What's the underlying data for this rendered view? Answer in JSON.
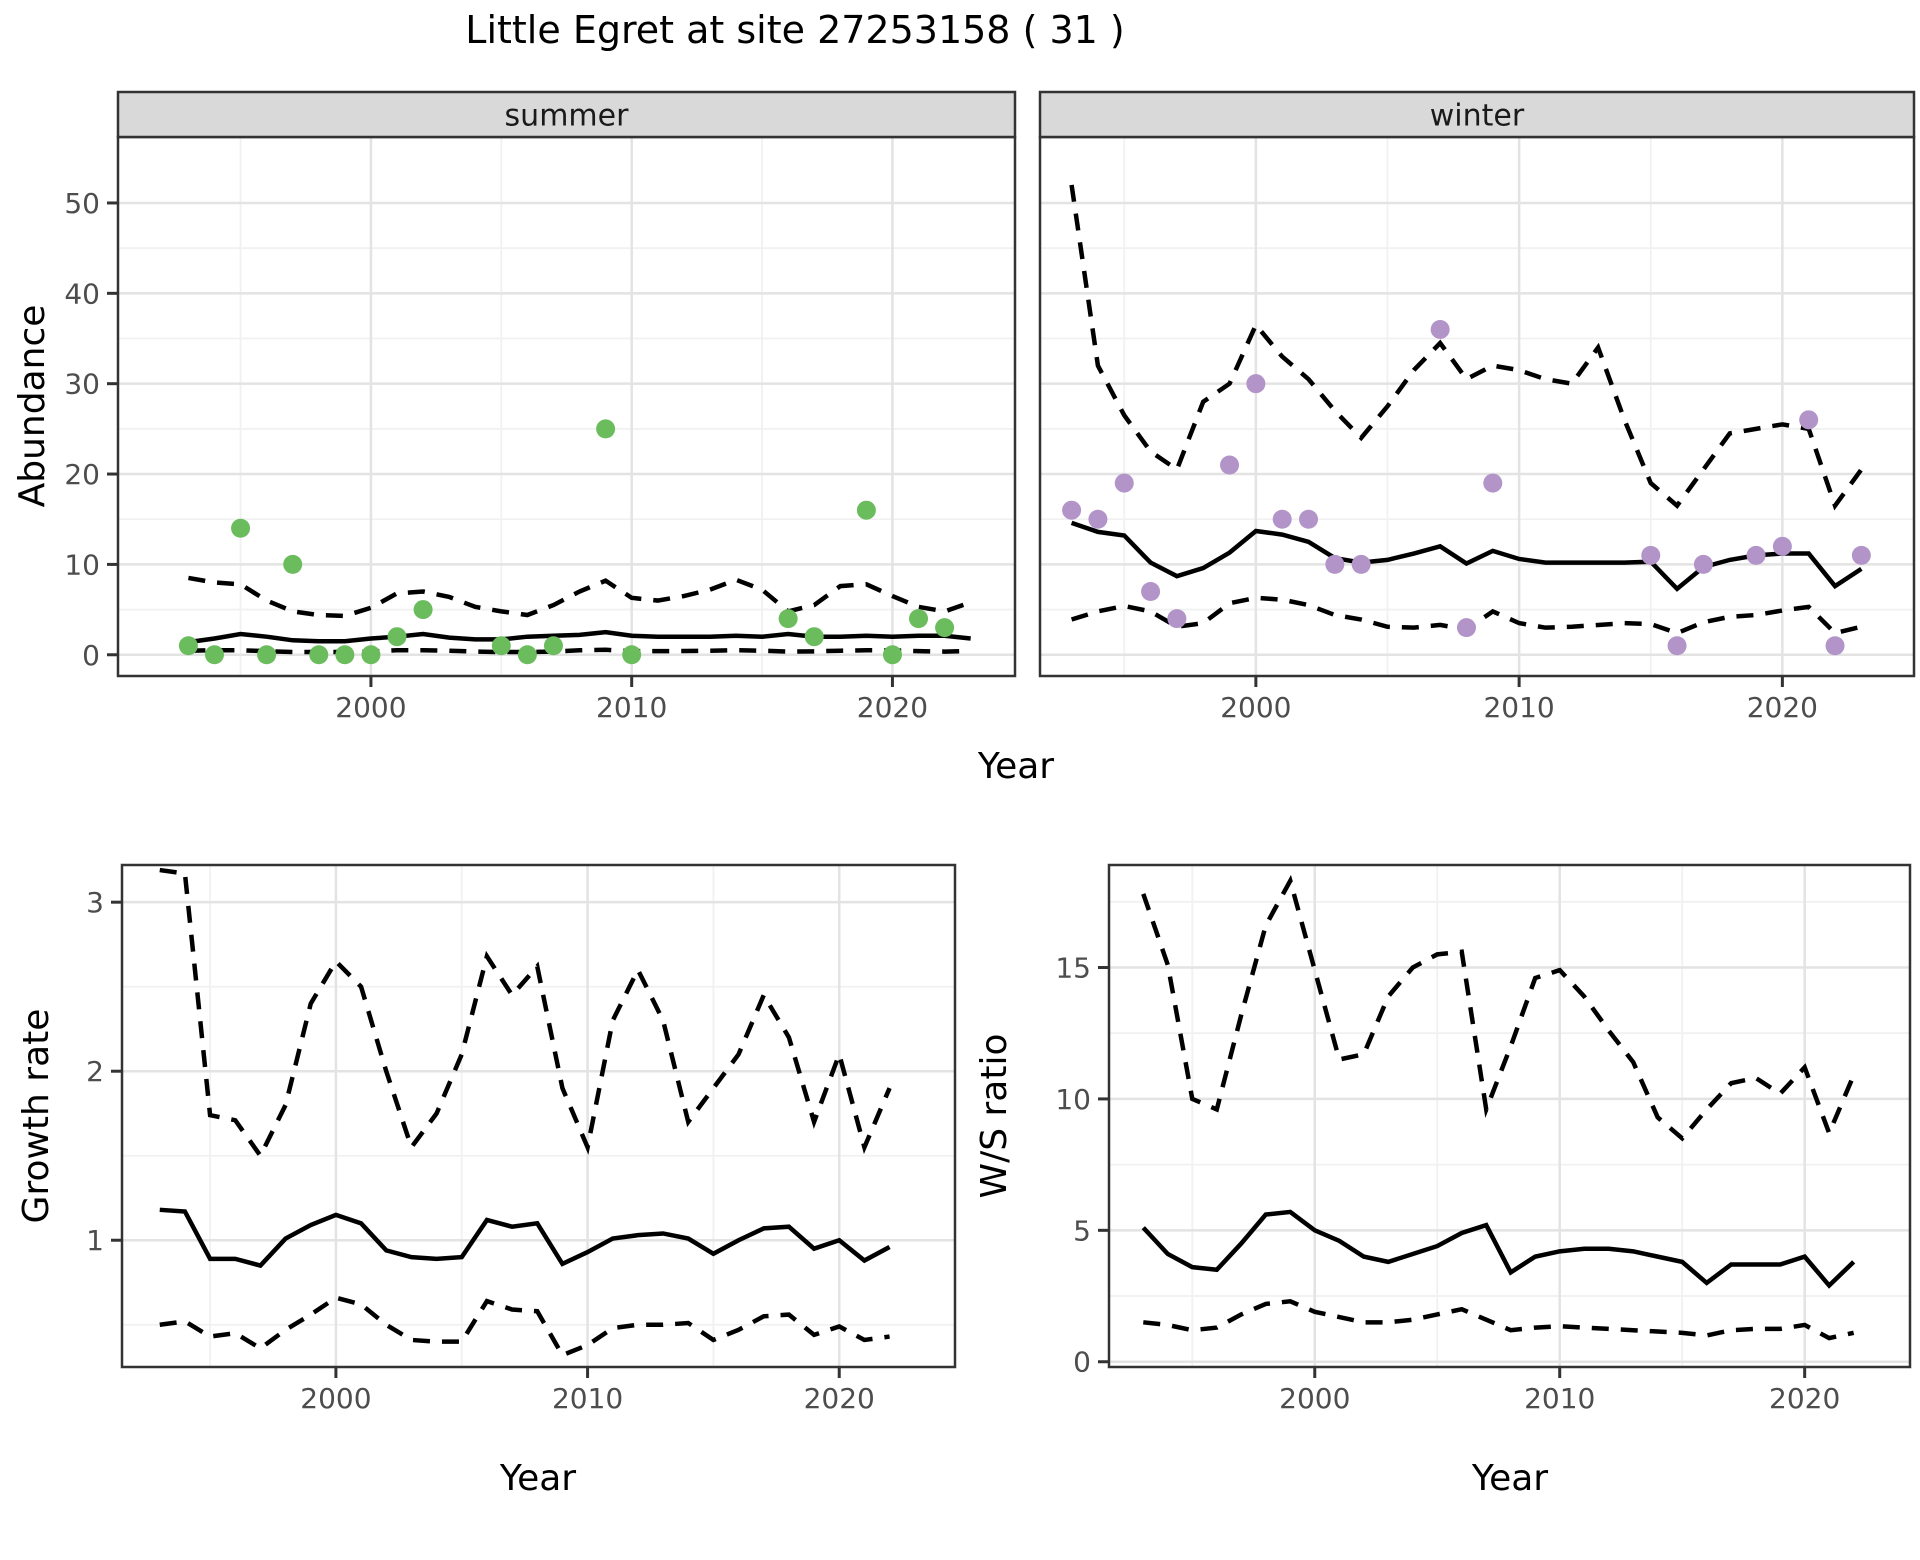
{
  "title": "Little Egret at site 27253158 ( 31 )",
  "axis_titles": {
    "abundance": "Abundance",
    "year": "Year",
    "growth": "Growth rate",
    "ws": "W/S ratio"
  },
  "facets": {
    "summer": "summer",
    "winter": "winter"
  },
  "colors": {
    "summer_point": "#6abc5c",
    "winter_point": "#b294c8",
    "fit_line": "#000000",
    "ci_line": "#000000",
    "strip_bg": "#d9d9d9",
    "panel_border": "#333333",
    "grid_major": "#e3e3e3",
    "grid_minor": "#f1f1f1",
    "tick_text": "#4d4d4d",
    "title_text": "#000000"
  },
  "chart_data": [
    {
      "id": "abundance_summer",
      "type": "scatter",
      "facet_label": "summer",
      "ylabel": "Abundance",
      "xlabel": "Year",
      "xlim": [
        1990.3,
        2024.7
      ],
      "ylim": [
        -2.35,
        57.3
      ],
      "xticks": [
        2000,
        2010,
        2020
      ],
      "xminor": [
        1995,
        2005,
        2015
      ],
      "yticks": [
        0,
        10,
        20,
        30,
        40,
        50
      ],
      "yminor": [
        5,
        15,
        25,
        35,
        45
      ],
      "grid": true,
      "legend": "none",
      "points": {
        "color": "#6abc5c",
        "years": [
          1993,
          1994,
          1995,
          1996,
          1997,
          1998,
          1999,
          2000,
          2001,
          2002,
          2005,
          2006,
          2007,
          2009,
          2010,
          2016,
          2017,
          2019,
          2020,
          2021,
          2022
        ],
        "values": [
          1,
          0,
          14,
          0,
          10,
          0,
          0,
          0,
          2,
          5,
          1,
          0,
          1,
          25,
          0,
          4,
          2,
          16,
          0,
          4,
          3
        ]
      },
      "fit": {
        "years": [
          1993,
          1994,
          1995,
          1996,
          1997,
          1998,
          1999,
          2000,
          2001,
          2002,
          2003,
          2004,
          2005,
          2006,
          2007,
          2008,
          2009,
          2010,
          2011,
          2012,
          2013,
          2014,
          2015,
          2016,
          2017,
          2018,
          2019,
          2020,
          2021,
          2022,
          2023
        ],
        "mean": [
          1.4,
          1.8,
          2.3,
          2.0,
          1.6,
          1.5,
          1.5,
          1.8,
          2.0,
          2.3,
          1.9,
          1.7,
          1.7,
          2.0,
          2.1,
          2.2,
          2.5,
          2.1,
          2.0,
          2.0,
          2.0,
          2.1,
          2.0,
          2.3,
          2.0,
          2.0,
          2.1,
          2.0,
          2.1,
          2.1,
          1.8
        ],
        "upper": [
          8.5,
          8.0,
          7.8,
          6.0,
          4.8,
          4.4,
          4.3,
          5.2,
          6.8,
          7.0,
          6.4,
          5.3,
          4.8,
          4.4,
          5.5,
          7.0,
          8.2,
          6.3,
          6.0,
          6.5,
          7.2,
          8.3,
          7.2,
          4.8,
          5.5,
          7.6,
          7.8,
          6.5,
          5.3,
          4.8,
          5.8
        ],
        "lower": [
          0.45,
          0.5,
          0.5,
          0.4,
          0.3,
          0.3,
          0.3,
          0.35,
          0.5,
          0.5,
          0.45,
          0.35,
          0.3,
          0.3,
          0.35,
          0.5,
          0.55,
          0.4,
          0.4,
          0.42,
          0.45,
          0.5,
          0.45,
          0.35,
          0.38,
          0.45,
          0.5,
          0.48,
          0.4,
          0.35,
          0.42
        ]
      }
    },
    {
      "id": "abundance_winter",
      "type": "scatter",
      "facet_label": "winter",
      "ylabel": "Abundance",
      "xlabel": "Year",
      "xlim": [
        1991.8,
        2025.0
      ],
      "ylim": [
        -2.35,
        57.3
      ],
      "xticks": [
        2000,
        2010,
        2020
      ],
      "xminor": [
        1995,
        2005,
        2015
      ],
      "yticks": [
        0,
        10,
        20,
        30,
        40,
        50
      ],
      "yminor": [
        5,
        15,
        25,
        35,
        45
      ],
      "grid": true,
      "legend": "none",
      "points": {
        "color": "#b294c8",
        "years": [
          1993,
          1994,
          1995,
          1996,
          1997,
          1999,
          2000,
          2001,
          2002,
          2003,
          2004,
          2007,
          2008,
          2009,
          2015,
          2016,
          2017,
          2019,
          2020,
          2021,
          2022,
          2023
        ],
        "values": [
          16,
          15,
          19,
          7,
          4,
          21,
          30,
          15,
          15,
          10,
          10,
          36,
          3,
          19,
          11,
          1,
          10,
          11,
          12,
          26,
          1,
          11
        ]
      },
      "fit": {
        "years": [
          1993,
          1994,
          1995,
          1996,
          1997,
          1998,
          1999,
          2000,
          2001,
          2002,
          2003,
          2004,
          2005,
          2006,
          2007,
          2008,
          2009,
          2010,
          2011,
          2012,
          2013,
          2014,
          2015,
          2016,
          2017,
          2018,
          2019,
          2020,
          2021,
          2022,
          2023
        ],
        "mean": [
          14.6,
          13.6,
          13.2,
          10.2,
          8.7,
          9.6,
          11.3,
          13.7,
          13.3,
          12.5,
          10.7,
          10.2,
          10.5,
          11.2,
          12.0,
          10.1,
          11.5,
          10.6,
          10.2,
          10.2,
          10.2,
          10.2,
          10.3,
          7.3,
          9.7,
          10.5,
          11.0,
          11.2,
          11.2,
          7.6,
          9.5
        ],
        "upper": [
          52,
          32,
          26.5,
          22.5,
          20.5,
          28,
          30,
          36.5,
          33,
          30.5,
          27,
          24,
          27.5,
          31.5,
          34.5,
          30.5,
          32,
          31.5,
          30.5,
          30,
          34,
          26,
          19,
          16.5,
          20.5,
          24.5,
          25,
          25.5,
          25,
          16.5,
          20.5
        ],
        "lower": [
          3.9,
          4.8,
          5.4,
          4.8,
          3.1,
          3.5,
          5.7,
          6.3,
          6.1,
          5.5,
          4.4,
          3.9,
          3.1,
          3.0,
          3.3,
          2.8,
          4.8,
          3.5,
          3.0,
          3.1,
          3.3,
          3.5,
          3.4,
          2.4,
          3.6,
          4.2,
          4.4,
          4.9,
          5.3,
          2.4,
          3.1
        ]
      }
    },
    {
      "id": "growth_rate",
      "type": "line",
      "ylabel": "Growth rate",
      "xlabel": "Year",
      "xlim": [
        1991.5,
        2024.6
      ],
      "ylim": [
        0.25,
        3.22
      ],
      "xticks": [
        2000,
        2010,
        2020
      ],
      "xminor": [
        1995,
        2005,
        2015
      ],
      "yticks": [
        1,
        2,
        3
      ],
      "yminor": [
        0.5,
        1.5,
        2.5
      ],
      "grid": true,
      "legend": "none",
      "fit": {
        "years": [
          1993,
          1994,
          1995,
          1996,
          1997,
          1998,
          1999,
          2000,
          2001,
          2002,
          2003,
          2004,
          2005,
          2006,
          2007,
          2008,
          2009,
          2010,
          2011,
          2012,
          2013,
          2014,
          2015,
          2016,
          2017,
          2018,
          2019,
          2020,
          2021,
          2022
        ],
        "mean": [
          1.18,
          1.17,
          0.89,
          0.89,
          0.85,
          1.01,
          1.09,
          1.15,
          1.1,
          0.94,
          0.9,
          0.89,
          0.9,
          1.12,
          1.08,
          1.1,
          0.86,
          0.93,
          1.01,
          1.03,
          1.04,
          1.01,
          0.92,
          1.0,
          1.07,
          1.08,
          0.95,
          1.0,
          0.88,
          0.96
        ],
        "upper": [
          3.19,
          3.17,
          1.74,
          1.71,
          1.5,
          1.8,
          2.4,
          2.65,
          2.5,
          2.0,
          1.55,
          1.75,
          2.1,
          2.68,
          2.45,
          2.62,
          1.9,
          1.55,
          2.3,
          2.6,
          2.3,
          1.7,
          1.9,
          2.1,
          2.45,
          2.2,
          1.7,
          2.1,
          1.55,
          1.9
        ],
        "lower": [
          0.5,
          0.52,
          0.43,
          0.45,
          0.36,
          0.47,
          0.56,
          0.66,
          0.62,
          0.5,
          0.41,
          0.4,
          0.4,
          0.64,
          0.59,
          0.58,
          0.32,
          0.38,
          0.48,
          0.5,
          0.5,
          0.51,
          0.41,
          0.47,
          0.55,
          0.56,
          0.44,
          0.49,
          0.41,
          0.43
        ]
      }
    },
    {
      "id": "ws_ratio",
      "type": "line",
      "ylabel": "W/S ratio",
      "xlabel": "Year",
      "xlim": [
        1991.6,
        2024.3
      ],
      "ylim": [
        -0.2,
        18.9
      ],
      "xticks": [
        2000,
        2010,
        2020
      ],
      "xminor": [
        1995,
        2005,
        2015
      ],
      "yticks": [
        0,
        5,
        10,
        15
      ],
      "yminor": [
        2.5,
        7.5,
        12.5,
        17.5
      ],
      "grid": true,
      "legend": "none",
      "fit": {
        "years": [
          1993,
          1994,
          1995,
          1996,
          1997,
          1998,
          1999,
          2000,
          2001,
          2002,
          2003,
          2004,
          2005,
          2006,
          2007,
          2008,
          2009,
          2010,
          2011,
          2012,
          2013,
          2014,
          2015,
          2016,
          2017,
          2018,
          2019,
          2020,
          2021,
          2022
        ],
        "mean": [
          5.1,
          4.1,
          3.6,
          3.5,
          4.5,
          5.6,
          5.7,
          5.0,
          4.6,
          4.0,
          3.8,
          4.1,
          4.4,
          4.9,
          5.2,
          3.4,
          4.0,
          4.2,
          4.3,
          4.3,
          4.2,
          4.0,
          3.8,
          3.0,
          3.7,
          3.7,
          3.7,
          4.0,
          2.9,
          3.8
        ],
        "upper": [
          17.8,
          15.1,
          10.0,
          9.6,
          13.2,
          16.6,
          18.3,
          14.9,
          11.5,
          11.7,
          13.9,
          15.0,
          15.5,
          15.6,
          9.6,
          12.0,
          14.6,
          14.9,
          13.9,
          12.6,
          11.4,
          9.3,
          8.5,
          9.6,
          10.6,
          10.8,
          10.2,
          11.2,
          8.7,
          10.9
        ],
        "lower": [
          1.5,
          1.4,
          1.2,
          1.3,
          1.8,
          2.2,
          2.3,
          1.9,
          1.7,
          1.5,
          1.5,
          1.6,
          1.8,
          2.0,
          1.6,
          1.2,
          1.3,
          1.35,
          1.3,
          1.25,
          1.2,
          1.15,
          1.1,
          1.0,
          1.2,
          1.25,
          1.25,
          1.4,
          0.9,
          1.1
        ]
      }
    }
  ]
}
